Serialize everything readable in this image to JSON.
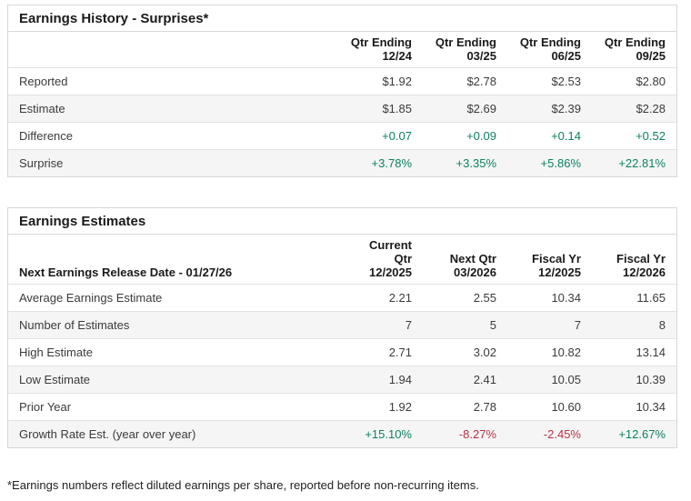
{
  "colors": {
    "positive": "#0d8165",
    "negative": "#b93246",
    "row_alt_background": "#f5f5f5"
  },
  "earnings_history": {
    "title": "Earnings History - Surprises*",
    "columns": [
      {
        "top": "Qtr Ending",
        "bottom": "12/24"
      },
      {
        "top": "Qtr Ending",
        "bottom": "03/25"
      },
      {
        "top": "Qtr Ending",
        "bottom": "06/25"
      },
      {
        "top": "Qtr Ending",
        "bottom": "09/25"
      }
    ],
    "rows": [
      {
        "label": "Reported",
        "values": [
          "$1.92",
          "$2.78",
          "$2.53",
          "$2.80"
        ],
        "tones": [
          "normal",
          "normal",
          "normal",
          "normal"
        ]
      },
      {
        "label": "Estimate",
        "values": [
          "$1.85",
          "$2.69",
          "$2.39",
          "$2.28"
        ],
        "tones": [
          "normal",
          "normal",
          "normal",
          "normal"
        ]
      },
      {
        "label": "Difference",
        "values": [
          "+0.07",
          "+0.09",
          "+0.14",
          "+0.52"
        ],
        "tones": [
          "positive",
          "positive",
          "positive",
          "positive"
        ]
      },
      {
        "label": "Surprise",
        "values": [
          "+3.78%",
          "+3.35%",
          "+5.86%",
          "+22.81%"
        ],
        "tones": [
          "positive",
          "positive",
          "positive",
          "positive"
        ]
      }
    ]
  },
  "earnings_estimates": {
    "title": "Earnings Estimates",
    "corner_label": "Next Earnings Release Date - 01/27/26",
    "columns": [
      {
        "top": "Current Qtr",
        "bottom": "12/2025"
      },
      {
        "top": "Next Qtr",
        "bottom": "03/2026"
      },
      {
        "top": "Fiscal Yr",
        "bottom": "12/2025"
      },
      {
        "top": "Fiscal Yr",
        "bottom": "12/2026"
      }
    ],
    "rows": [
      {
        "label": "Average Earnings Estimate",
        "values": [
          "2.21",
          "2.55",
          "10.34",
          "11.65"
        ],
        "tones": [
          "normal",
          "normal",
          "normal",
          "normal"
        ]
      },
      {
        "label": "Number of Estimates",
        "values": [
          "7",
          "5",
          "7",
          "8"
        ],
        "tones": [
          "normal",
          "normal",
          "normal",
          "normal"
        ]
      },
      {
        "label": "High Estimate",
        "values": [
          "2.71",
          "3.02",
          "10.82",
          "13.14"
        ],
        "tones": [
          "normal",
          "normal",
          "normal",
          "normal"
        ]
      },
      {
        "label": "Low Estimate",
        "values": [
          "1.94",
          "2.41",
          "10.05",
          "10.39"
        ],
        "tones": [
          "normal",
          "normal",
          "normal",
          "normal"
        ]
      },
      {
        "label": "Prior Year",
        "values": [
          "1.92",
          "2.78",
          "10.60",
          "10.34"
        ],
        "tones": [
          "normal",
          "normal",
          "normal",
          "normal"
        ]
      },
      {
        "label": "Growth Rate Est. (year over year)",
        "values": [
          "+15.10%",
          "-8.27%",
          "-2.45%",
          "+12.67%"
        ],
        "tones": [
          "positive",
          "negative",
          "negative",
          "positive"
        ]
      }
    ]
  },
  "footnote": "*Earnings numbers reflect diluted earnings per share, reported before non-recurring items."
}
